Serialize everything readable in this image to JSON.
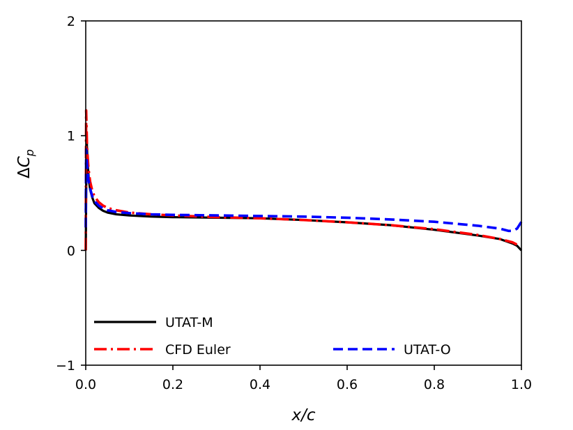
{
  "chart_data": {
    "type": "line",
    "title": "",
    "xlabel": "x/c",
    "ylabel": "ΔC_p",
    "xlim": [
      0.0,
      1.0
    ],
    "ylim": [
      -1,
      2
    ],
    "xticks": [
      0.0,
      0.2,
      0.4,
      0.6,
      0.8,
      1.0
    ],
    "xtick_labels": [
      "0.0",
      "0.2",
      "0.4",
      "0.6",
      "0.8",
      "1.0"
    ],
    "yticks": [
      -1,
      0,
      1,
      2
    ],
    "ytick_labels": [
      "−1",
      "0",
      "1",
      "2"
    ],
    "grid": false,
    "legend_position": "lower-left",
    "series": [
      {
        "name": "UTAT-M",
        "color": "#000000",
        "style": "solid",
        "x": [
          0.0,
          0.002,
          0.004,
          0.007,
          0.01,
          0.015,
          0.02,
          0.03,
          0.04,
          0.05,
          0.07,
          0.1,
          0.15,
          0.2,
          0.3,
          0.4,
          0.5,
          0.6,
          0.7,
          0.8,
          0.9,
          0.95,
          0.98,
          0.99,
          1.0
        ],
        "y": [
          0.0,
          0.98,
          0.78,
          0.62,
          0.53,
          0.46,
          0.41,
          0.37,
          0.345,
          0.33,
          0.315,
          0.305,
          0.295,
          0.29,
          0.285,
          0.28,
          0.265,
          0.245,
          0.22,
          0.18,
          0.13,
          0.1,
          0.06,
          0.04,
          0.0
        ]
      },
      {
        "name": "CFD Euler",
        "color": "#ff0000",
        "style": "dashdot",
        "x": [
          0.0,
          0.001,
          0.003,
          0.006,
          0.01,
          0.015,
          0.02,
          0.03,
          0.04,
          0.05,
          0.07,
          0.1,
          0.15,
          0.2,
          0.3,
          0.4,
          0.5,
          0.6,
          0.7,
          0.8,
          0.9,
          0.95,
          0.98,
          0.99
        ],
        "y": [
          0.0,
          1.22,
          0.9,
          0.72,
          0.6,
          0.52,
          0.47,
          0.42,
          0.39,
          0.37,
          0.35,
          0.33,
          0.315,
          0.305,
          0.29,
          0.28,
          0.265,
          0.245,
          0.22,
          0.185,
          0.135,
          0.1,
          0.07,
          0.05
        ]
      },
      {
        "name": "UTAT-O",
        "color": "#0000ff",
        "style": "dashed",
        "x": [
          0.0,
          0.001,
          0.003,
          0.006,
          0.01,
          0.015,
          0.02,
          0.03,
          0.04,
          0.05,
          0.07,
          0.1,
          0.15,
          0.2,
          0.3,
          0.4,
          0.5,
          0.6,
          0.7,
          0.8,
          0.9,
          0.95,
          0.97,
          0.98,
          0.99,
          1.0
        ],
        "y": [
          0.2,
          0.88,
          0.75,
          0.62,
          0.54,
          0.47,
          0.43,
          0.39,
          0.365,
          0.35,
          0.335,
          0.325,
          0.315,
          0.31,
          0.305,
          0.3,
          0.295,
          0.285,
          0.27,
          0.25,
          0.215,
          0.19,
          0.17,
          0.17,
          0.19,
          0.25
        ]
      }
    ]
  }
}
